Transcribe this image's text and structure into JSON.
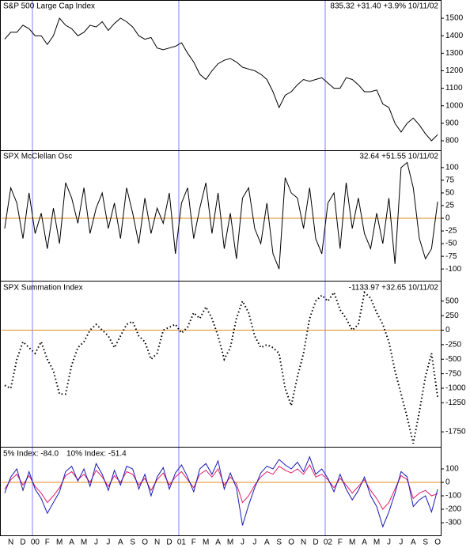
{
  "chart_data": [
    {
      "type": "line",
      "title": "S&P 500 Large Cap Index",
      "readout": "835.32 +31.40 +3.9% 10/11/02",
      "color": "#000000",
      "ylim": [
        755,
        1595
      ],
      "yticks": [
        800,
        900,
        1000,
        1100,
        1200,
        1300,
        1400,
        1500
      ],
      "values": [
        1380,
        1420,
        1420,
        1460,
        1440,
        1400,
        1400,
        1350,
        1400,
        1500,
        1460,
        1440,
        1400,
        1420,
        1460,
        1450,
        1480,
        1430,
        1470,
        1500,
        1480,
        1450,
        1400,
        1380,
        1390,
        1330,
        1320,
        1330,
        1340,
        1360,
        1300,
        1250,
        1180,
        1150,
        1200,
        1240,
        1260,
        1270,
        1250,
        1220,
        1210,
        1200,
        1180,
        1150,
        1080,
        990,
        1060,
        1080,
        1120,
        1150,
        1140,
        1150,
        1160,
        1130,
        1100,
        1100,
        1160,
        1150,
        1120,
        1080,
        1080,
        1090,
        1010,
        990,
        900,
        850,
        900,
        930,
        890,
        840,
        800,
        835
      ]
    },
    {
      "type": "line",
      "title": "SPX McClellan Osc",
      "readout": "32.64 +51.55 10/11/02",
      "color": "#000000",
      "hline": 0,
      "hline_color": "#e08a1e",
      "ylim": [
        -120,
        131
      ],
      "yticks": [
        100,
        75,
        50,
        25,
        0,
        -25,
        -50,
        -75,
        -100
      ],
      "values": [
        -20,
        60,
        30,
        -40,
        50,
        -30,
        10,
        -60,
        20,
        -50,
        70,
        40,
        -10,
        60,
        -30,
        20,
        50,
        -20,
        30,
        -40,
        60,
        10,
        -50,
        40,
        -30,
        20,
        -10,
        50,
        -70,
        30,
        60,
        -40,
        20,
        70,
        -30,
        50,
        -60,
        10,
        -80,
        40,
        60,
        -20,
        -50,
        30,
        -70,
        -100,
        80,
        50,
        40,
        -20,
        60,
        -40,
        -70,
        30,
        50,
        -60,
        70,
        -20,
        40,
        -30,
        -60,
        10,
        -50,
        40,
        -90,
        100,
        110,
        60,
        -40,
        -80,
        -60,
        32.64
      ]
    },
    {
      "type": "dotted",
      "title": "SPX Summation Index",
      "readout": "-1133.97 +32.65 10/11/02",
      "color": "#000000",
      "hline": 0,
      "hline_color": "#e08a1e",
      "ylim": [
        -1980,
        810
      ],
      "yticks": [
        500,
        250,
        0,
        -250,
        -500,
        -750,
        -1000,
        -1250,
        -1750
      ],
      "values": [
        -950,
        -1000,
        -500,
        -200,
        -300,
        -400,
        -200,
        -500,
        -700,
        -1100,
        -1100,
        -600,
        -300,
        -200,
        0,
        100,
        0,
        -100,
        -300,
        -100,
        100,
        150,
        -100,
        -200,
        -500,
        -400,
        0,
        50,
        100,
        -50,
        50,
        300,
        200,
        400,
        200,
        -100,
        -500,
        -300,
        200,
        500,
        300,
        -100,
        -300,
        -250,
        -300,
        -400,
        -1000,
        -1300,
        -800,
        -400,
        200,
        500,
        600,
        500,
        650,
        350,
        200,
        0,
        100,
        650,
        550,
        300,
        100,
        -200,
        -700,
        -1100,
        -1500,
        -1950,
        -1400,
        -800,
        -400,
        -1150
      ]
    },
    {
      "type": "line",
      "hline": 0,
      "hline_color": "#e08a1e",
      "ylim": [
        -388,
        247
      ],
      "yticks": [
        100,
        0,
        -100,
        -200,
        -300
      ],
      "categories": [
        null,
        "N",
        null,
        "D",
        null,
        "00",
        null,
        "F",
        null,
        "M",
        null,
        "A",
        null,
        "M",
        null,
        "J",
        null,
        "J",
        null,
        "A",
        null,
        "S",
        null,
        "O",
        null,
        "N",
        null,
        "D",
        null,
        "01",
        null,
        "F",
        null,
        "M",
        null,
        "A",
        null,
        "M",
        null,
        "J",
        null,
        "J",
        null,
        "A",
        null,
        "S",
        null,
        "O",
        null,
        "N",
        null,
        "D",
        null,
        "02",
        null,
        "F",
        null,
        "M",
        null,
        "A",
        null,
        "M",
        null,
        "J",
        null,
        "J",
        null,
        "A",
        null,
        "S",
        null,
        "O"
      ],
      "series": [
        {
          "name": "5% Index: -84.0",
          "color": "#e0206a",
          "values": [
            -50,
            20,
            60,
            -20,
            50,
            -30,
            -80,
            -150,
            -100,
            -40,
            50,
            80,
            20,
            60,
            0,
            90,
            40,
            -30,
            50,
            0,
            80,
            60,
            -20,
            30,
            -60,
            20,
            70,
            -20,
            40,
            80,
            20,
            -40,
            60,
            90,
            40,
            100,
            -20,
            40,
            -10,
            -150,
            -100,
            -20,
            40,
            80,
            60,
            120,
            90,
            70,
            100,
            60,
            130,
            40,
            60,
            20,
            -40,
            30,
            -20,
            -80,
            -30,
            20,
            -60,
            -120,
            -200,
            -150,
            -50,
            50,
            20,
            -120,
            -80,
            -60,
            -100,
            -84
          ]
        },
        {
          "name": "10% Index: -51.4",
          "color": "#1a1ab4",
          "values": [
            -80,
            40,
            100,
            -60,
            80,
            -50,
            -120,
            -230,
            -150,
            -70,
            80,
            120,
            10,
            100,
            -30,
            140,
            60,
            -60,
            90,
            -20,
            120,
            100,
            -50,
            60,
            -100,
            40,
            110,
            -50,
            70,
            130,
            40,
            -70,
            100,
            140,
            60,
            160,
            -50,
            70,
            -40,
            -320,
            -170,
            -40,
            70,
            120,
            100,
            170,
            130,
            100,
            150,
            80,
            190,
            60,
            100,
            30,
            -70,
            60,
            -50,
            -130,
            -60,
            40,
            -100,
            -180,
            -330,
            -220,
            -80,
            80,
            40,
            -180,
            -130,
            -100,
            -220,
            -51.4
          ]
        }
      ]
    }
  ]
}
